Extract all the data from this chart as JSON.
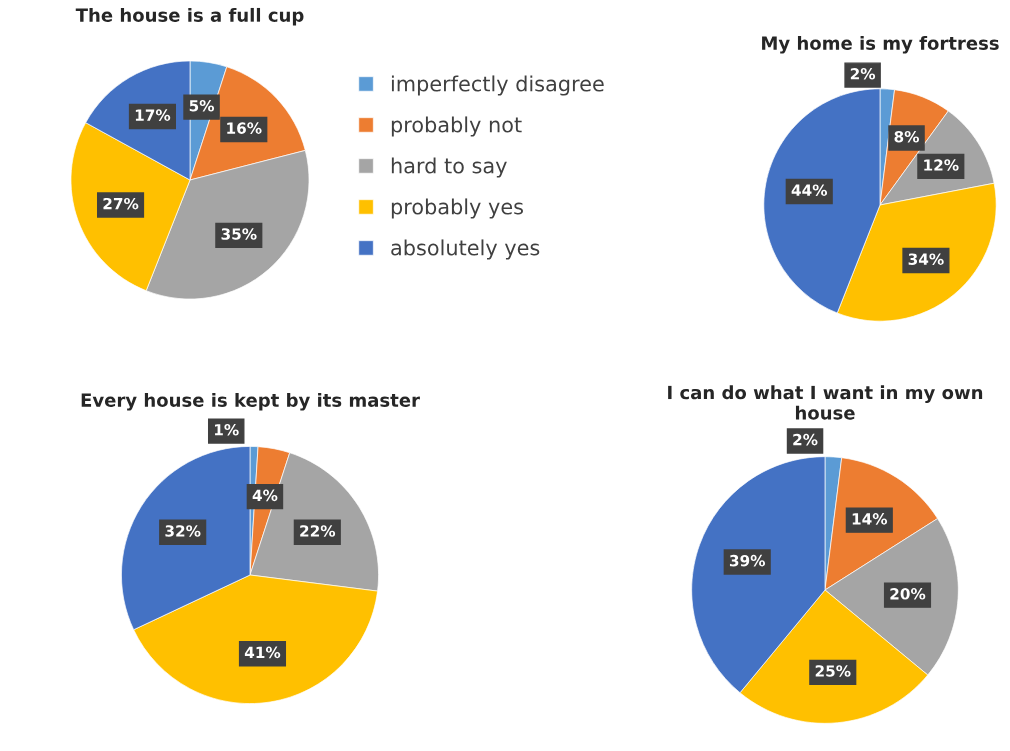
{
  "chart_data": [
    {
      "type": "pie",
      "title": "The house is a full cup",
      "categories": [
        "imperfectly disagree",
        "probably not",
        "hard to say",
        "probably yes",
        "absolutely yes"
      ],
      "values": [
        5,
        16,
        35,
        27,
        17
      ],
      "value_labels": [
        "5%",
        "16%",
        "35%",
        "27%",
        "17%"
      ],
      "colors": [
        "#5b9bd5",
        "#ed7d31",
        "#a5a5a5",
        "#ffc000",
        "#4472c4"
      ],
      "legend": "right"
    },
    {
      "type": "pie",
      "title": "My home is my fortress",
      "categories": [
        null,
        null,
        null,
        null,
        null
      ],
      "values": [
        2,
        8,
        12,
        34,
        44
      ],
      "value_labels": [
        "2%",
        "8%",
        "12%",
        "34%",
        "44%"
      ],
      "colors": [
        "#5b9bd5",
        "#ed7d31",
        "#a5a5a5",
        "#ffc000",
        "#4472c4"
      ]
    },
    {
      "type": "pie",
      "title": "Every house is kept by its master",
      "categories": [
        null,
        null,
        null,
        null,
        null
      ],
      "values": [
        1,
        4,
        22,
        41,
        32
      ],
      "value_labels": [
        "1%",
        "4%",
        "22%",
        "41%",
        "32%"
      ],
      "colors": [
        "#5b9bd5",
        "#ed7d31",
        "#a5a5a5",
        "#ffc000",
        "#4472c4"
      ]
    },
    {
      "type": "pie",
      "title": "I can do what I want in my own house",
      "categories": [
        null,
        null,
        null,
        null,
        null
      ],
      "values": [
        2,
        14,
        20,
        25,
        39
      ],
      "value_labels": [
        "2%",
        "14%",
        "20%",
        "25%",
        "39%"
      ],
      "colors": [
        "#5b9bd5",
        "#ed7d31",
        "#a5a5a5",
        "#ffc000",
        "#4472c4"
      ]
    }
  ]
}
